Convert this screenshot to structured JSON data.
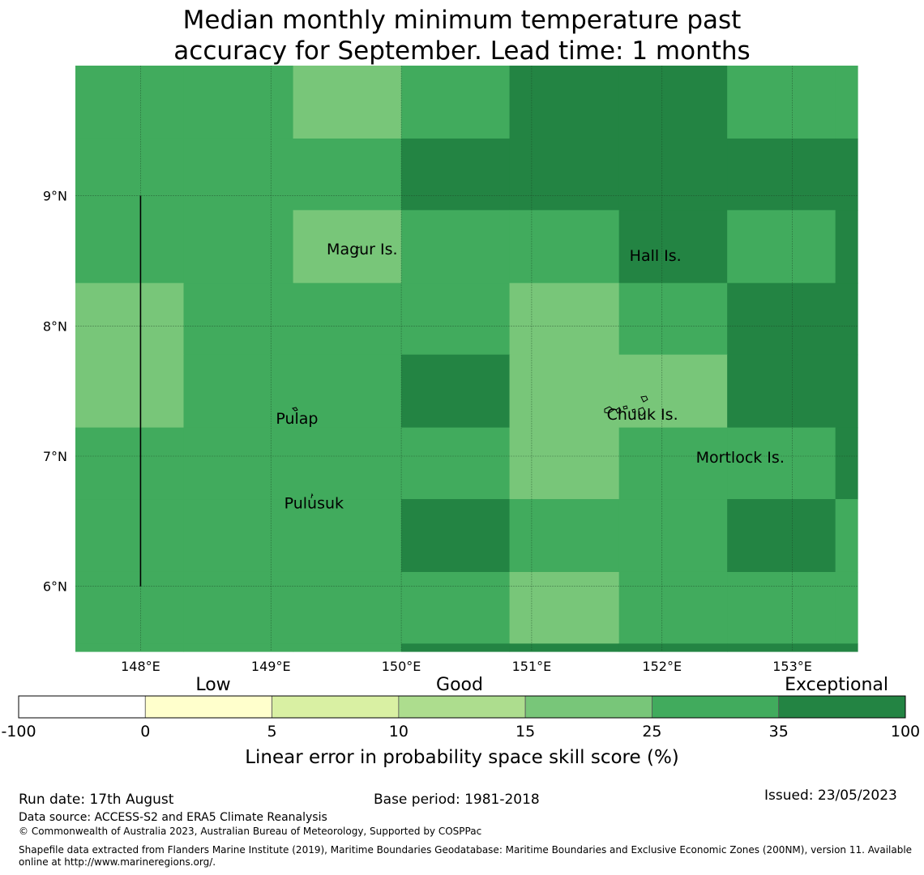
{
  "title_line1": "Median monthly minimum temperature past",
  "title_line2": "accuracy for September. Lead time: 1 months",
  "map": {
    "lon_range": [
      147.5,
      153.5
    ],
    "lat_range": [
      5.5,
      10.0
    ],
    "lon_ticks": [
      148,
      149,
      150,
      151,
      152,
      153
    ],
    "lon_tick_labels": [
      "148°E",
      "149°E",
      "150°E",
      "151°E",
      "152°E",
      "153°E"
    ],
    "lat_ticks": [
      9,
      8,
      7,
      6
    ],
    "lat_tick_labels": [
      "9°N",
      "8°N",
      "7°N",
      "6°N"
    ],
    "grid_lines": true,
    "boundary_line": {
      "lon": 148,
      "lat_from": 6,
      "lat_to": 9
    },
    "places": [
      {
        "name": "Magur Is.",
        "lon": 149.7,
        "lat": 8.55
      },
      {
        "name": "Hall Is.",
        "lon": 151.95,
        "lat": 8.5
      },
      {
        "name": "Pulap",
        "lon": 149.2,
        "lat": 7.25
      },
      {
        "name": "Chuuk Is.",
        "lon": 151.85,
        "lat": 7.28
      },
      {
        "name": "Mortlock Is.",
        "lon": 152.6,
        "lat": 6.95
      },
      {
        "name": "Pulusuk",
        "lon": 149.33,
        "lat": 6.6
      }
    ]
  },
  "chart_data": {
    "type": "heatmap",
    "x_edges": [
      147.5,
      148.33,
      149.17,
      150.0,
      150.83,
      151.67,
      152.5,
      153.33,
      153.5
    ],
    "y_edges": [
      10.0,
      9.44,
      8.89,
      8.33,
      7.78,
      7.22,
      6.67,
      6.11,
      5.56,
      5.5
    ],
    "category_values": {
      "light": "15-25",
      "mid": "25-35",
      "dark": "35-100"
    },
    "cells": [
      [
        "mid",
        "mid",
        "light",
        "mid",
        "dark",
        "dark",
        "mid",
        "mid"
      ],
      [
        "mid",
        "mid",
        "mid",
        "dark",
        "dark",
        "dark",
        "dark",
        "dark"
      ],
      [
        "mid",
        "mid",
        "light",
        "mid",
        "mid",
        "dark",
        "mid",
        "dark"
      ],
      [
        "light",
        "mid",
        "mid",
        "mid",
        "light",
        "mid",
        "dark",
        "dark"
      ],
      [
        "light",
        "mid",
        "mid",
        "dark",
        "light",
        "light",
        "dark",
        "dark"
      ],
      [
        "mid",
        "mid",
        "mid",
        "mid",
        "light",
        "mid",
        "mid",
        "dark"
      ],
      [
        "mid",
        "mid",
        "mid",
        "dark",
        "mid",
        "mid",
        "dark",
        "mid"
      ],
      [
        "mid",
        "mid",
        "mid",
        "mid",
        "light",
        "mid",
        "mid",
        "mid"
      ],
      [
        "mid",
        "mid",
        "mid",
        "dark",
        "dark",
        "dark",
        "dark",
        "dark"
      ]
    ]
  },
  "colorbar": {
    "categories": [
      "Low",
      "Good",
      "Exceptional"
    ],
    "tick_labels": [
      "-100",
      "0",
      "5",
      "10",
      "15",
      "25",
      "35",
      "100"
    ],
    "colors": [
      "#ffffff",
      "#ffffcc",
      "#d9f0a3",
      "#addd8e",
      "#78c679",
      "#41ab5d",
      "#238443"
    ],
    "label": "Linear error in probability space skill score (%)"
  },
  "footer": {
    "run_date": "Run date: 17th August",
    "base_period": "Base period: 1981-2018",
    "issued": "Issued: 23/05/2023",
    "data_source": "Data source: ACCESS-S2 and ERA5 Climate Reanalysis",
    "copyright": "© Commonwealth of Australia 2023, Australian Bureau of Meteorology, Supported by COSPPac",
    "shapefile_line1": "Shapefile data extracted from Flanders Marine Institute (2019), Maritime Boundaries Geodatabase: Maritime Boundaries and Exclusive Economic Zones (200NM), version 11. Available",
    "shapefile_line2": "online at http://www.marineregions.org/."
  }
}
